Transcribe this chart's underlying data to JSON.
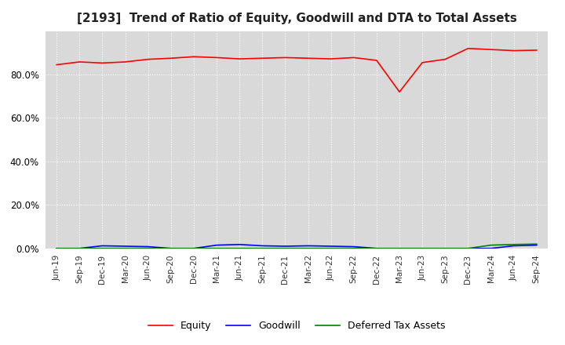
{
  "title": "[2193]  Trend of Ratio of Equity, Goodwill and DTA to Total Assets",
  "title_fontsize": 11,
  "x_labels": [
    "Jun-19",
    "Sep-19",
    "Dec-19",
    "Mar-20",
    "Jun-20",
    "Sep-20",
    "Dec-20",
    "Mar-21",
    "Jun-21",
    "Sep-21",
    "Dec-21",
    "Mar-22",
    "Jun-22",
    "Sep-22",
    "Dec-22",
    "Mar-23",
    "Jun-23",
    "Sep-23",
    "Dec-23",
    "Mar-24",
    "Jun-24",
    "Sep-24"
  ],
  "equity": [
    84.5,
    85.8,
    85.3,
    85.8,
    87.0,
    87.5,
    88.2,
    87.8,
    87.2,
    87.5,
    87.8,
    87.5,
    87.2,
    87.8,
    86.5,
    72.0,
    85.5,
    87.0,
    92.0,
    91.5,
    91.0,
    91.2
  ],
  "goodwill": [
    0.0,
    0.0,
    1.2,
    1.0,
    0.8,
    0.0,
    0.0,
    1.5,
    1.8,
    1.2,
    1.0,
    1.2,
    1.0,
    0.8,
    0.0,
    0.0,
    0.0,
    0.0,
    0.0,
    0.0,
    1.2,
    1.5
  ],
  "dta": [
    0.0,
    0.0,
    0.0,
    0.0,
    0.0,
    0.0,
    0.0,
    0.0,
    0.0,
    0.0,
    0.0,
    0.0,
    0.0,
    0.0,
    0.0,
    0.0,
    0.0,
    0.0,
    0.0,
    1.5,
    1.8,
    2.0
  ],
  "equity_color": "#ff0000",
  "goodwill_color": "#0000ff",
  "dta_color": "#008000",
  "ylim": [
    0,
    100
  ],
  "yticks": [
    0,
    20,
    40,
    60,
    80
  ],
  "ytick_labels": [
    "0.0%",
    "20.0%",
    "40.0%",
    "60.0%",
    "80.0%"
  ],
  "background_color": "#ffffff",
  "plot_bg_color": "#d9d9d9",
  "grid_color": "#ffffff",
  "legend_labels": [
    "Equity",
    "Goodwill",
    "Deferred Tax Assets"
  ]
}
